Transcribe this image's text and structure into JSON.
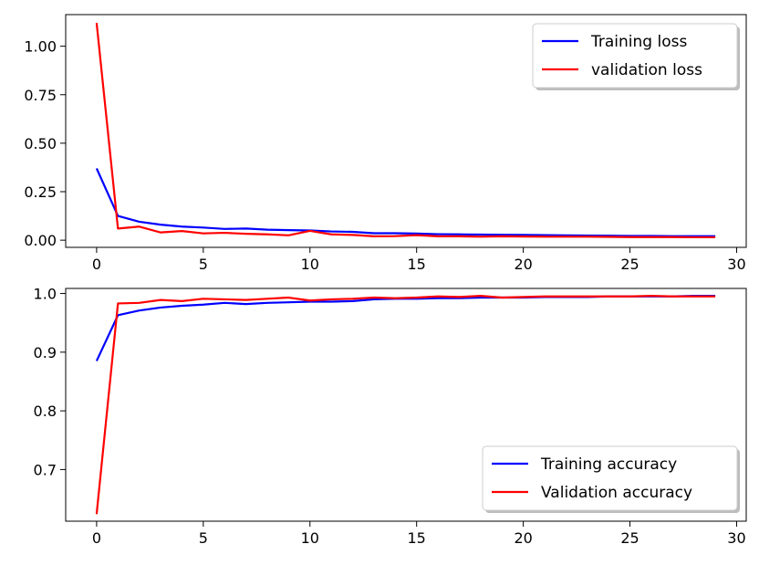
{
  "chart_data": [
    {
      "type": "line",
      "title": "",
      "xlabel": "",
      "ylabel": "",
      "xlim": [
        -1.45,
        30.45
      ],
      "ylim": [
        -0.037,
        1.163
      ],
      "xticks": [
        0,
        5,
        10,
        15,
        20,
        25,
        30
      ],
      "yticks": [
        0.0,
        0.25,
        0.5,
        0.75,
        1.0
      ],
      "ytick_labels": [
        "0.00",
        "0.25",
        "0.50",
        "0.75",
        "1.00"
      ],
      "grid": false,
      "legend_position": "upper right",
      "series": [
        {
          "name": "Training loss",
          "color": "#0000ff",
          "x": [
            0,
            1,
            2,
            3,
            4,
            5,
            6,
            7,
            8,
            9,
            10,
            11,
            12,
            13,
            14,
            15,
            16,
            17,
            18,
            19,
            20,
            21,
            22,
            23,
            24,
            25,
            26,
            27,
            28,
            29
          ],
          "values": [
            0.37,
            0.125,
            0.095,
            0.08,
            0.07,
            0.065,
            0.058,
            0.06,
            0.054,
            0.052,
            0.05,
            0.045,
            0.043,
            0.036,
            0.036,
            0.034,
            0.031,
            0.03,
            0.029,
            0.028,
            0.027,
            0.026,
            0.025,
            0.024,
            0.023,
            0.022,
            0.022,
            0.021,
            0.021,
            0.021
          ]
        },
        {
          "name": "validation loss",
          "color": "#ff0000",
          "x": [
            0,
            1,
            2,
            3,
            4,
            5,
            6,
            7,
            8,
            9,
            10,
            11,
            12,
            13,
            14,
            15,
            16,
            17,
            18,
            19,
            20,
            21,
            22,
            23,
            24,
            25,
            26,
            27,
            28,
            29
          ],
          "values": [
            1.12,
            0.06,
            0.07,
            0.04,
            0.047,
            0.035,
            0.038,
            0.033,
            0.03,
            0.025,
            0.048,
            0.03,
            0.027,
            0.02,
            0.021,
            0.026,
            0.02,
            0.02,
            0.018,
            0.02,
            0.019,
            0.018,
            0.018,
            0.018,
            0.017,
            0.016,
            0.016,
            0.016,
            0.015,
            0.015
          ]
        }
      ]
    },
    {
      "type": "line",
      "title": "",
      "xlabel": "",
      "ylabel": "",
      "xlim": [
        -1.45,
        30.45
      ],
      "ylim": [
        0.612,
        1.0086
      ],
      "xticks": [
        0,
        5,
        10,
        15,
        20,
        25,
        30
      ],
      "yticks": [
        0.7,
        0.8,
        0.9,
        1.0
      ],
      "ytick_labels": [
        "0.7",
        "0.8",
        "0.9",
        "1.0"
      ],
      "grid": false,
      "legend_position": "lower right",
      "series": [
        {
          "name": "Training accuracy",
          "color": "#0000ff",
          "x": [
            0,
            1,
            2,
            3,
            4,
            5,
            6,
            7,
            8,
            9,
            10,
            11,
            12,
            13,
            14,
            15,
            16,
            17,
            18,
            19,
            20,
            21,
            22,
            23,
            24,
            25,
            26,
            27,
            28,
            29
          ],
          "values": [
            0.885,
            0.963,
            0.971,
            0.976,
            0.979,
            0.981,
            0.984,
            0.982,
            0.984,
            0.985,
            0.986,
            0.986,
            0.987,
            0.99,
            0.991,
            0.991,
            0.992,
            0.992,
            0.993,
            0.993,
            0.993,
            0.994,
            0.994,
            0.994,
            0.995,
            0.995,
            0.995,
            0.995,
            0.996,
            0.996
          ]
        },
        {
          "name": "Validation accuracy",
          "color": "#ff0000",
          "x": [
            0,
            1,
            2,
            3,
            4,
            5,
            6,
            7,
            8,
            9,
            10,
            11,
            12,
            13,
            14,
            15,
            16,
            17,
            18,
            19,
            20,
            21,
            22,
            23,
            24,
            25,
            26,
            27,
            28,
            29
          ],
          "values": [
            0.624,
            0.983,
            0.984,
            0.989,
            0.987,
            0.991,
            0.99,
            0.989,
            0.991,
            0.993,
            0.988,
            0.99,
            0.991,
            0.993,
            0.992,
            0.993,
            0.995,
            0.994,
            0.996,
            0.993,
            0.994,
            0.995,
            0.995,
            0.995,
            0.995,
            0.995,
            0.996,
            0.995,
            0.995,
            0.995
          ]
        }
      ]
    }
  ]
}
